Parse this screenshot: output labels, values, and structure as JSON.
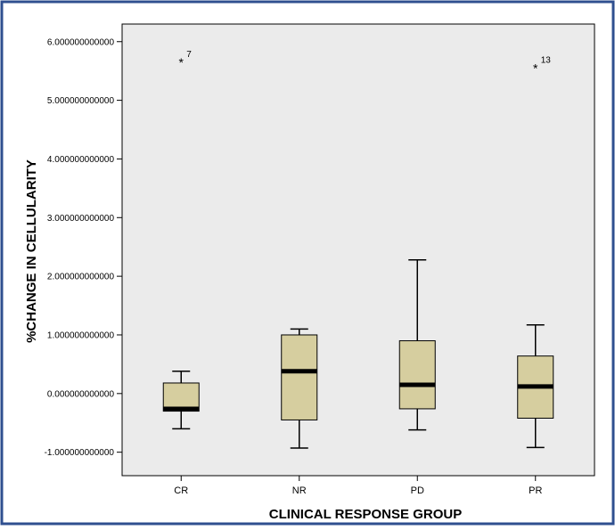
{
  "chart_data": {
    "type": "boxplot",
    "xlabel": "CLINICAL RESPONSE GROUP",
    "ylabel": "%CHANGE IN CELLULARITY",
    "ylim": [
      -1.4,
      6.3
    ],
    "yticks": [
      6.0,
      5.0,
      4.0,
      3.0,
      2.0,
      1.0,
      0.0,
      -1.0
    ],
    "ytick_labels": [
      "6.000000000000",
      "5.000000000000",
      "4.000000000000",
      "3.000000000000",
      "2.000000000000",
      "1.000000000000",
      "0.000000000000",
      "-1.000000000000"
    ],
    "categories": [
      "CR",
      "NR",
      "PD",
      "PR"
    ],
    "boxes": [
      {
        "category": "CR",
        "whisker_low": -0.6,
        "q1": -0.3,
        "median": -0.26,
        "q3": 0.18,
        "whisker_high": 0.38
      },
      {
        "category": "NR",
        "whisker_low": -0.93,
        "q1": -0.45,
        "median": 0.38,
        "q3": 1.0,
        "whisker_high": 1.1
      },
      {
        "category": "PD",
        "whisker_low": -0.62,
        "q1": -0.26,
        "median": 0.15,
        "q3": 0.9,
        "whisker_high": 2.28
      },
      {
        "category": "PR",
        "whisker_low": -0.92,
        "q1": -0.42,
        "median": 0.12,
        "q3": 0.64,
        "whisker_high": 1.17
      }
    ],
    "outliers": [
      {
        "category": "CR",
        "value": 5.65,
        "label": "7",
        "marker": "*"
      },
      {
        "category": "PR",
        "value": 5.55,
        "label": "13",
        "marker": "*"
      }
    ],
    "grid": false,
    "legend": "none",
    "colors": {
      "frame_border": "#2f4f8f",
      "plot_background": "#ebebeb",
      "box_fill": "#d6ce9f",
      "median": "#000000",
      "text": "#000000"
    }
  }
}
